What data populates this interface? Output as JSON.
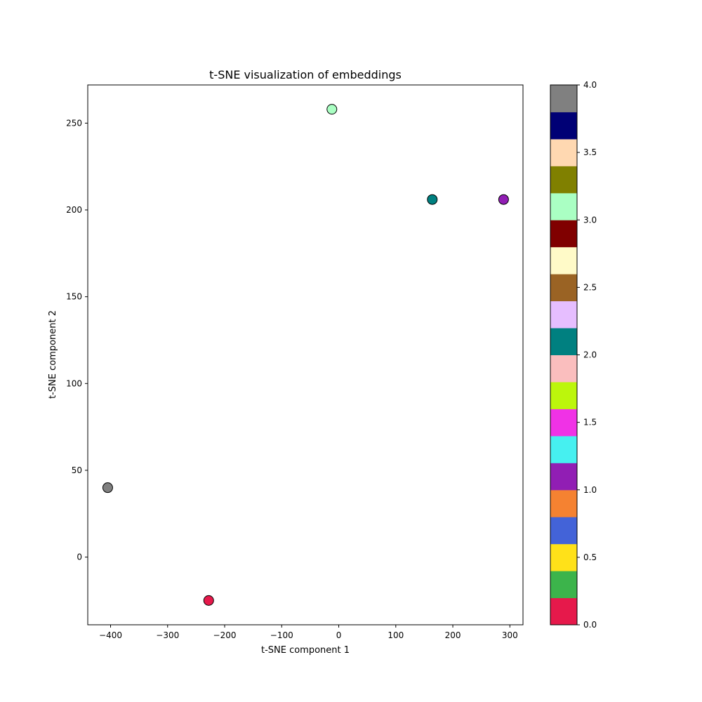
{
  "chart_data": {
    "type": "scatter",
    "title": "t-SNE visualization of embeddings",
    "xlabel": "t-SNE component 1",
    "ylabel": "t-SNE component 2",
    "xlim": [
      -440,
      323
    ],
    "ylim": [
      -39,
      272
    ],
    "xticks": [
      -400,
      -300,
      -200,
      -100,
      0,
      100,
      200,
      300
    ],
    "yticks": [
      0,
      50,
      100,
      150,
      200,
      250
    ],
    "grid": false,
    "points": [
      {
        "x": -405,
        "y": 40,
        "value": 4.0,
        "color": "#808080"
      },
      {
        "x": -228,
        "y": -25,
        "value": 0.0,
        "color": "#e6194b"
      },
      {
        "x": -12,
        "y": 258,
        "value": 3.0,
        "color": "#aaffc3"
      },
      {
        "x": 164,
        "y": 206,
        "value": 2.0,
        "color": "#008080"
      },
      {
        "x": 289,
        "y": 206,
        "value": 1.0,
        "color": "#911eb4"
      }
    ],
    "colorbar": {
      "range": [
        0.0,
        4.0
      ],
      "ticks": [
        "0.0",
        "0.5",
        "1.0",
        "1.5",
        "2.0",
        "2.5",
        "3.0",
        "3.5",
        "4.0"
      ],
      "colors": [
        "#e6194b",
        "#3cb44b",
        "#ffe119",
        "#4363d8",
        "#f58231",
        "#911eb4",
        "#46f0f0",
        "#f032e6",
        "#bcf60c",
        "#fabebe",
        "#008080",
        "#e6beff",
        "#9a6324",
        "#fffac8",
        "#800000",
        "#aaffc3",
        "#808000",
        "#ffd8b1",
        "#000075",
        "#808080"
      ]
    }
  }
}
